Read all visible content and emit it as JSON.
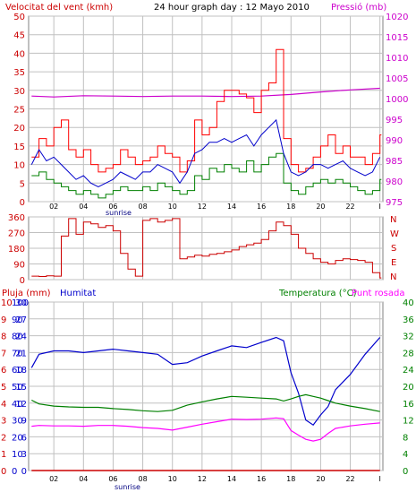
{
  "header": {
    "wind_label": "Velocitat del vent (kmh)",
    "title": "24 hour graph day : 12 Mayo 2010",
    "pressure_label": "Pressió (mb)"
  },
  "rain_label": "Pluja (mm)",
  "humidity_label": "Humitat",
  "temperature_label": "Temperatura (°C)",
  "dewpoint_label": "Punt rosada",
  "sunrise_label": "sunrise",
  "compass": [
    "N",
    "W",
    "S",
    "E",
    "N"
  ],
  "colors": {
    "wind_gust": "#ff0000",
    "wind_avg": "#0000cc",
    "wind_speed": "#008000",
    "pressure": "#cc00cc",
    "direction": "#cc0000",
    "humidity": "#0000cc",
    "temperature": "#008000",
    "dewpoint": "#ff00ff",
    "rain": "#cc0000",
    "grid": "#c0c0c0",
    "axis_left": "#cc0000",
    "axis_right_pressure": "#cc00cc",
    "axis_right_temp": "#008000",
    "axis_humidity": "#0000cc"
  },
  "chart_data": [
    {
      "type": "line",
      "title": "24 hour graph day : 12 Mayo 2010",
      "xlabel": "",
      "x_ticks": [
        "02",
        "04",
        "06",
        "08",
        "10",
        "12",
        "14",
        "16",
        "18",
        "20",
        "22",
        "I"
      ],
      "x_hours": [
        1,
        3,
        5,
        7,
        9,
        11,
        13,
        15,
        17,
        19,
        21,
        23
      ],
      "xlim": [
        -0.7,
        23.2
      ],
      "ylabel": "Velocitat del vent (kmh)",
      "ylim": [
        0,
        50
      ],
      "y_ticks": [
        0,
        5,
        10,
        15,
        20,
        25,
        30,
        35,
        40,
        45,
        50
      ],
      "y2label": "Pressió (mb)",
      "y2lim": [
        975,
        1020
      ],
      "y2_ticks": [
        975,
        980,
        985,
        990,
        995,
        1000,
        1005,
        1010,
        1015,
        1020
      ],
      "grid": true,
      "series": [
        {
          "name": "Gust",
          "x": [
            -0.5,
            0.0,
            0.5,
            1.0,
            1.5,
            2.0,
            2.5,
            3.0,
            3.5,
            4.0,
            4.5,
            5.0,
            5.5,
            6.0,
            6.5,
            7.0,
            7.5,
            8.0,
            8.5,
            9.0,
            9.5,
            10.0,
            10.5,
            11.0,
            11.5,
            12.0,
            12.5,
            13.0,
            13.5,
            14.0,
            14.5,
            15.0,
            15.5,
            16.0,
            16.5,
            17.0,
            17.5,
            18.0,
            18.5,
            19.0,
            19.5,
            20.0,
            20.5,
            21.0,
            21.5,
            22.0,
            22.5,
            23.0
          ],
          "values": [
            12,
            17,
            15,
            20,
            22,
            14,
            12,
            14,
            10,
            8,
            9,
            10,
            14,
            12,
            10,
            11,
            12,
            15,
            13,
            12,
            8,
            11,
            22,
            18,
            20,
            27,
            30,
            30,
            29,
            28,
            24,
            30,
            32,
            41,
            17,
            10,
            8,
            9,
            12,
            15,
            18,
            13,
            15,
            12,
            12,
            10,
            13,
            18
          ]
        },
        {
          "name": "Average",
          "x": [
            -0.5,
            0.0,
            0.5,
            1.0,
            1.5,
            2.0,
            2.5,
            3.0,
            3.5,
            4.0,
            4.5,
            5.0,
            5.5,
            6.0,
            6.5,
            7.0,
            7.5,
            8.0,
            8.5,
            9.0,
            9.5,
            10.0,
            10.5,
            11.0,
            11.5,
            12.0,
            12.5,
            13.0,
            13.5,
            14.0,
            14.5,
            15.0,
            15.5,
            16.0,
            16.5,
            17.0,
            17.5,
            18.0,
            18.5,
            19.0,
            19.5,
            20.0,
            20.5,
            21.0,
            21.5,
            22.0,
            22.5,
            23.0
          ],
          "values": [
            10,
            14,
            11,
            12,
            10,
            8,
            6,
            7,
            5,
            4,
            5,
            6,
            8,
            7,
            6,
            8,
            8,
            10,
            9,
            8,
            5,
            8,
            13,
            14,
            16,
            16,
            17,
            16,
            17,
            18,
            15,
            18,
            20,
            22,
            13,
            8,
            7,
            8,
            10,
            10,
            9,
            10,
            11,
            9,
            8,
            7,
            8,
            12
          ]
        },
        {
          "name": "Speed",
          "x": [
            -0.5,
            0.0,
            0.5,
            1.0,
            1.5,
            2.0,
            2.5,
            3.0,
            3.5,
            4.0,
            4.5,
            5.0,
            5.5,
            6.0,
            6.5,
            7.0,
            7.5,
            8.0,
            8.5,
            9.0,
            9.5,
            10.0,
            10.5,
            11.0,
            11.5,
            12.0,
            12.5,
            13.0,
            13.5,
            14.0,
            14.5,
            15.0,
            15.5,
            16.0,
            16.5,
            17.0,
            17.5,
            18.0,
            18.5,
            19.0,
            19.5,
            20.0,
            20.5,
            21.0,
            21.5,
            22.0,
            22.5,
            23.0
          ],
          "values": [
            7,
            8,
            6,
            5,
            4,
            3,
            2,
            3,
            2,
            1,
            2,
            3,
            4,
            3,
            3,
            4,
            3,
            5,
            4,
            3,
            2,
            3,
            7,
            6,
            9,
            8,
            10,
            9,
            8,
            11,
            8,
            10,
            12,
            13,
            5,
            3,
            2,
            4,
            5,
            6,
            5,
            6,
            5,
            4,
            3,
            2,
            3,
            6
          ]
        },
        {
          "name": "Pressure",
          "axis": "right",
          "x": [
            -0.5,
            1.0,
            3.0,
            5.0,
            7.0,
            9.0,
            11.0,
            13.0,
            15.0,
            17.0,
            19.0,
            21.0,
            23.0
          ],
          "values": [
            1000.6,
            1000.4,
            1000.7,
            1000.6,
            1000.5,
            1000.6,
            1000.6,
            1000.5,
            1000.6,
            1001.0,
            1001.6,
            1002.1,
            1002.5
          ]
        }
      ]
    },
    {
      "type": "scatter",
      "xlabel": "",
      "ylabel": "",
      "x_ticks": [
        "02",
        "04",
        "06",
        "08",
        "10",
        "12",
        "14",
        "16",
        "18",
        "20",
        "22",
        "I"
      ],
      "x_hours": [
        1,
        3,
        5,
        7,
        9,
        11,
        13,
        15,
        17,
        19,
        21,
        23
      ],
      "ylim": [
        0,
        360
      ],
      "y_ticks": [
        0,
        90,
        180,
        270,
        360
      ],
      "grid": true,
      "series": [
        {
          "name": "Direction",
          "x": [
            -0.5,
            0.0,
            0.5,
            1.0,
            1.5,
            2.0,
            2.5,
            3.0,
            3.5,
            4.0,
            4.5,
            5.0,
            5.5,
            6.0,
            6.5,
            7.0,
            7.5,
            8.0,
            8.5,
            9.0,
            9.5,
            10.0,
            10.5,
            11.0,
            11.5,
            12.0,
            12.5,
            13.0,
            13.5,
            14.0,
            14.5,
            15.0,
            15.5,
            16.0,
            16.5,
            17.0,
            17.5,
            18.0,
            18.5,
            19.0,
            19.5,
            20.0,
            20.5,
            21.0,
            21.5,
            22.0,
            22.5,
            23.0
          ],
          "values": [
            20,
            18,
            22,
            20,
            250,
            350,
            260,
            330,
            320,
            300,
            310,
            280,
            150,
            60,
            20,
            340,
            350,
            330,
            340,
            350,
            120,
            130,
            140,
            135,
            145,
            150,
            160,
            170,
            190,
            200,
            210,
            230,
            280,
            330,
            310,
            260,
            180,
            150,
            120,
            100,
            90,
            110,
            120,
            115,
            110,
            100,
            40,
            10
          ]
        }
      ]
    },
    {
      "type": "line",
      "xlabel": "",
      "x_ticks": [
        "02",
        "04",
        "06",
        "08",
        "10",
        "12",
        "14",
        "16",
        "18",
        "20",
        "22",
        "I"
      ],
      "x_hours": [
        1,
        3,
        5,
        7,
        9,
        11,
        13,
        15,
        17,
        19,
        21,
        23
      ],
      "ylabel": "Pluja (mm)",
      "ylim": [
        0,
        10
      ],
      "y_ticks": [
        0,
        1,
        2,
        3,
        4,
        5,
        6,
        7,
        8,
        9,
        10
      ],
      "humidity_ylabel": "Humitat",
      "humidity_ylim": [
        0,
        100
      ],
      "humidity_ticks": [
        0,
        10,
        20,
        30,
        40,
        50,
        60,
        70,
        80,
        90,
        100
      ],
      "left_extra_ylim": [
        0,
        30
      ],
      "left_extra_ticks": [
        0,
        3,
        6,
        9,
        12,
        15,
        18,
        21,
        24,
        27,
        30
      ],
      "y2label": "Temperatura (°C)",
      "y2lim": [
        0,
        40
      ],
      "y2_ticks": [
        0,
        4,
        8,
        12,
        16,
        20,
        24,
        28,
        32,
        36,
        40
      ],
      "grid": true,
      "series": [
        {
          "name": "Humitat",
          "axis": "humidity",
          "x": [
            -0.5,
            0.0,
            1.0,
            2.0,
            3.0,
            4.0,
            5.0,
            6.0,
            7.0,
            8.0,
            9.0,
            10.0,
            11.0,
            12.0,
            13.0,
            14.0,
            15.0,
            16.0,
            16.5,
            17.0,
            17.5,
            18.0,
            18.5,
            19.0,
            19.5,
            20.0,
            21.0,
            22.0,
            23.0
          ],
          "values": [
            61,
            69,
            71,
            71,
            70,
            71,
            72,
            71,
            70,
            69,
            63,
            64,
            68,
            71,
            74,
            73,
            76,
            79,
            77,
            58,
            46,
            30,
            27,
            33,
            38,
            48,
            57,
            69,
            79
          ]
        },
        {
          "name": "Temperatura",
          "axis": "right",
          "x": [
            -0.5,
            0.0,
            1.0,
            2.0,
            3.0,
            4.0,
            5.0,
            6.0,
            7.0,
            8.0,
            9.0,
            10.0,
            11.0,
            12.0,
            13.0,
            14.0,
            15.0,
            16.0,
            16.5,
            17.0,
            17.5,
            18.0,
            18.5,
            19.0,
            19.5,
            20.0,
            21.0,
            22.0,
            23.0
          ],
          "values": [
            16.7,
            15.8,
            15.3,
            15.1,
            15.0,
            15.0,
            14.7,
            14.5,
            14.2,
            14.0,
            14.3,
            15.5,
            16.3,
            17.0,
            17.6,
            17.4,
            17.2,
            17.0,
            16.5,
            17.0,
            17.6,
            18.0,
            17.6,
            17.2,
            16.6,
            16.0,
            15.3,
            14.7,
            14.0
          ]
        },
        {
          "name": "Punt rosada",
          "axis": "right",
          "x": [
            -0.5,
            0.0,
            1.0,
            2.0,
            3.0,
            4.0,
            5.0,
            6.0,
            7.0,
            8.0,
            9.0,
            10.0,
            11.0,
            12.0,
            13.0,
            14.0,
            15.0,
            16.0,
            16.5,
            17.0,
            17.5,
            18.0,
            18.5,
            19.0,
            19.5,
            20.0,
            21.0,
            22.0,
            23.0
          ],
          "values": [
            10.5,
            10.7,
            10.6,
            10.6,
            10.5,
            10.7,
            10.7,
            10.5,
            10.2,
            10.0,
            9.6,
            10.3,
            11.0,
            11.6,
            12.2,
            12.1,
            12.2,
            12.5,
            12.3,
            9.5,
            8.4,
            7.4,
            7.0,
            7.4,
            8.8,
            10.0,
            10.6,
            11.0,
            11.3
          ]
        },
        {
          "name": "Pluja",
          "axis": "left",
          "x": [
            -0.5,
            23.0
          ],
          "values": [
            0,
            0
          ]
        }
      ]
    }
  ]
}
